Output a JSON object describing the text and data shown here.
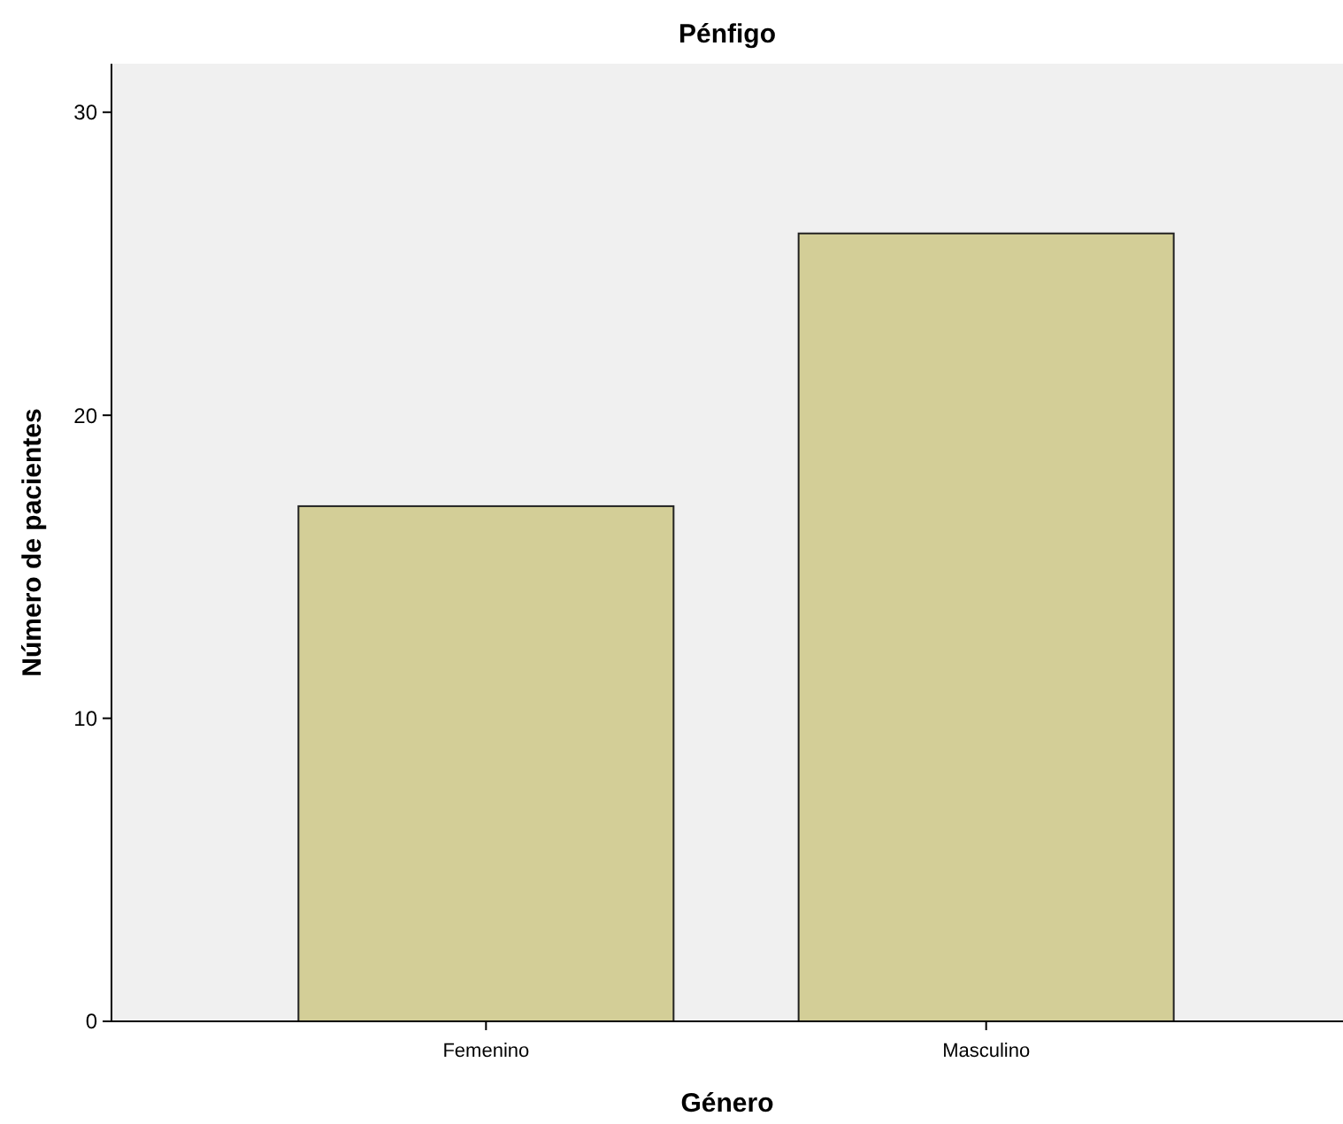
{
  "chart_data": {
    "type": "bar",
    "title": "Pénfigo",
    "xlabel": "Género",
    "ylabel": "Número de pacientes",
    "categories": [
      "Femenino",
      "Masculino"
    ],
    "values": [
      17,
      26
    ],
    "color": "#d3ce97",
    "ylim": [
      0,
      31.6
    ],
    "yticks": [
      0,
      10,
      20,
      30
    ],
    "grid": false
  }
}
